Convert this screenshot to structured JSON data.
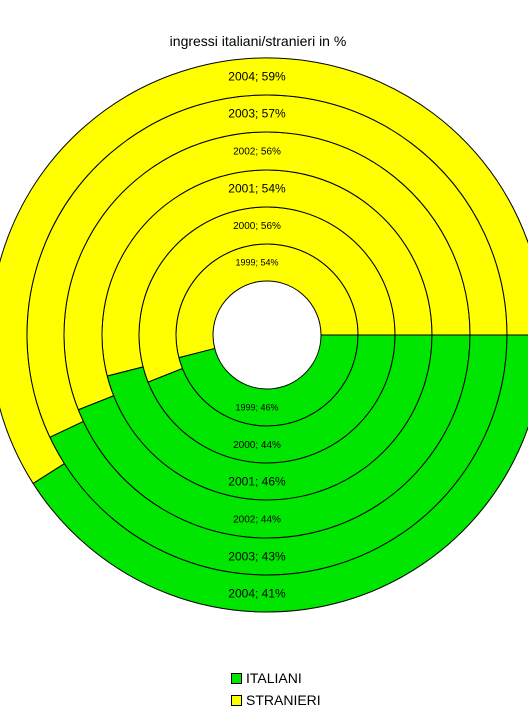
{
  "chart_data": {
    "type": "donut",
    "title": "ingressi italiani/stranieri in %",
    "categories": [
      "ITALIANI",
      "STRANIERI"
    ],
    "colors": {
      "ITALIANI": "#00e600",
      "STRANIERI": "#ffff00"
    },
    "rings": [
      {
        "year": "1999",
        "values": [
          46,
          54
        ],
        "labels": [
          "1999; 46%",
          "1999; 54%"
        ]
      },
      {
        "year": "2000",
        "values": [
          44,
          56
        ],
        "labels": [
          "2000; 44%",
          "2000; 56%"
        ]
      },
      {
        "year": "2001",
        "values": [
          46,
          54
        ],
        "labels": [
          "2001; 46%",
          "2001; 54%"
        ]
      },
      {
        "year": "2002",
        "values": [
          44,
          56
        ],
        "labels": [
          "2002; 44%",
          "2002; 56%"
        ]
      },
      {
        "year": "2003",
        "values": [
          43,
          57
        ],
        "labels": [
          "2003; 43%",
          "2003; 57%"
        ]
      },
      {
        "year": "2004",
        "values": [
          41,
          59
        ],
        "labels": [
          "2004; 41%",
          "2004; 59%"
        ]
      }
    ],
    "legend": {
      "position": "bottom",
      "items": [
        {
          "label": "ITALIANI",
          "color": "#00e600"
        },
        {
          "label": "STRANIERI",
          "color": "#ffff00"
        }
      ]
    }
  }
}
